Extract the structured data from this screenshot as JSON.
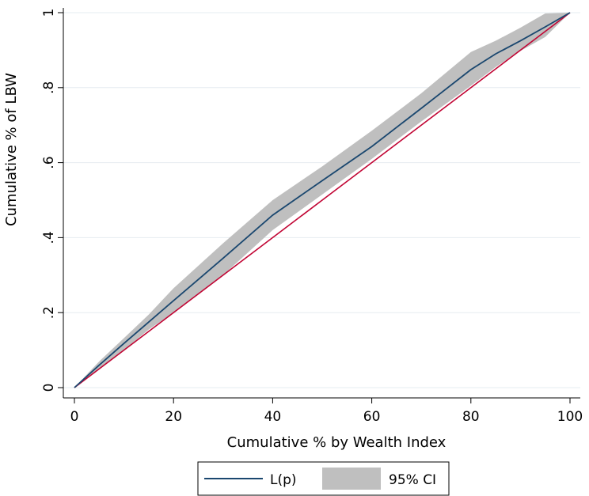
{
  "chart_data": {
    "type": "line",
    "xlabel": "Cumulative % by Wealth Index",
    "ylabel": "Cumulative % of LBW",
    "xlim": [
      0,
      100
    ],
    "ylim": [
      0,
      1
    ],
    "x_ticks": [
      0,
      20,
      40,
      60,
      80,
      100
    ],
    "x_tick_labels": [
      "0",
      "20",
      "40",
      "60",
      "80",
      "100"
    ],
    "y_ticks": [
      0,
      0.2,
      0.4,
      0.6,
      0.8,
      1
    ],
    "y_tick_labels": [
      "0",
      ".2",
      ".4",
      ".6",
      ".8",
      "1"
    ],
    "grid": "horizontal",
    "legend_position": "bottom",
    "colors": {
      "curve": "#1a476f",
      "ci_band": "#bfbfbf",
      "equality": "#c10534",
      "grid": "#e6ecf0"
    },
    "series": [
      {
        "name": "L(p)",
        "x": [
          0,
          5,
          10,
          15,
          20,
          30,
          40,
          50,
          60,
          70,
          80,
          85,
          90,
          95,
          100
        ],
        "y": [
          0,
          0.06,
          0.118,
          0.175,
          0.232,
          0.345,
          0.46,
          0.552,
          0.643,
          0.745,
          0.848,
          0.89,
          0.925,
          0.962,
          1.0
        ]
      },
      {
        "name": "95% CI",
        "x": [
          0,
          5,
          10,
          15,
          20,
          30,
          40,
          50,
          60,
          70,
          80,
          85,
          90,
          95,
          100
        ],
        "lower": [
          0,
          0.05,
          0.1,
          0.155,
          0.2,
          0.3,
          0.42,
          0.515,
          0.61,
          0.71,
          0.805,
          0.855,
          0.898,
          0.935,
          1.0
        ],
        "upper": [
          0,
          0.07,
          0.132,
          0.195,
          0.265,
          0.385,
          0.5,
          0.59,
          0.685,
          0.785,
          0.895,
          0.925,
          0.96,
          0.998,
          1.0
        ]
      }
    ],
    "equality_line": {
      "x": [
        0,
        100
      ],
      "y": [
        0,
        1
      ]
    }
  }
}
